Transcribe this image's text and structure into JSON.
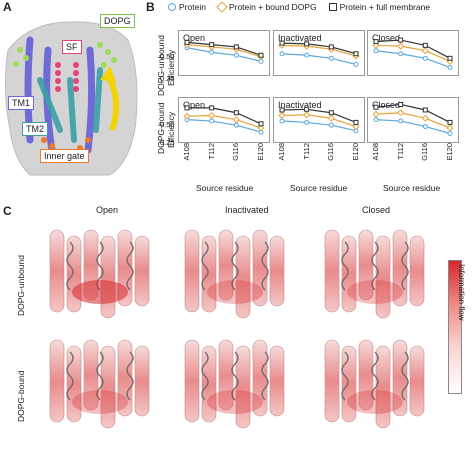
{
  "panels": {
    "a": "A",
    "b": "B",
    "c": "C"
  },
  "panelA": {
    "labels": {
      "dopg": "DOPG",
      "sf": "SF",
      "tm1": "TM1",
      "tm2": "TM2",
      "inner_gate": "Inner gate"
    }
  },
  "legend": {
    "protein": "Protein",
    "bound": "Protein + bound DOPG",
    "membrane": "Protein + full membrane"
  },
  "panelB": {
    "ylabel_top": "DOPG-unbound\nEfficiency",
    "ylabel_top_1": "DOPG-unbound",
    "ylabel_top_2": "Efficiency",
    "ylabel_bottom_1": "DOPG-bound",
    "ylabel_bottom_2": "Efficiency",
    "xlabel": "Source residue",
    "yticks": [
      "0.50",
      "0.25"
    ]
  },
  "chart_data": [
    {
      "type": "line",
      "title": "Open",
      "row": "DOPG-unbound",
      "categories": [
        "A108",
        "T112",
        "G116",
        "E120"
      ],
      "series": [
        {
          "name": "Protein",
          "values": [
            0.52,
            0.46,
            0.42,
            0.34
          ]
        },
        {
          "name": "Protein + bound DOPG",
          "values": [
            0.56,
            0.53,
            0.5,
            0.4
          ]
        },
        {
          "name": "Protein + full membrane",
          "values": [
            0.59,
            0.56,
            0.53,
            0.42
          ]
        }
      ],
      "ylim": [
        0.2,
        0.7
      ]
    },
    {
      "type": "line",
      "title": "Inactivated",
      "row": "DOPG-unbound",
      "categories": [
        "A108",
        "T112",
        "G116",
        "E120"
      ],
      "series": [
        {
          "name": "Protein",
          "values": [
            0.44,
            0.42,
            0.38,
            0.3
          ]
        },
        {
          "name": "Protein + bound DOPG",
          "values": [
            0.55,
            0.54,
            0.5,
            0.41
          ]
        },
        {
          "name": "Protein + full membrane",
          "values": [
            0.58,
            0.57,
            0.53,
            0.44
          ]
        }
      ],
      "ylim": [
        0.2,
        0.7
      ]
    },
    {
      "type": "line",
      "title": "Closed",
      "row": "DOPG-unbound",
      "categories": [
        "A108",
        "T112",
        "G116",
        "E120"
      ],
      "series": [
        {
          "name": "Protein",
          "values": [
            0.48,
            0.44,
            0.38,
            0.26
          ]
        },
        {
          "name": "Protein + bound DOPG",
          "values": [
            0.55,
            0.54,
            0.48,
            0.34
          ]
        },
        {
          "name": "Protein + full membrane",
          "values": [
            0.6,
            0.62,
            0.55,
            0.38
          ]
        }
      ],
      "ylim": [
        0.2,
        0.7
      ]
    },
    {
      "type": "line",
      "title": "Open",
      "row": "DOPG-bound",
      "categories": [
        "A108",
        "T112",
        "G116",
        "E120"
      ],
      "series": [
        {
          "name": "Protein",
          "values": [
            0.48,
            0.46,
            0.4,
            0.3
          ]
        },
        {
          "name": "Protein + bound DOPG",
          "values": [
            0.53,
            0.54,
            0.48,
            0.36
          ]
        },
        {
          "name": "Protein + full membrane",
          "values": [
            0.65,
            0.65,
            0.58,
            0.42
          ]
        }
      ],
      "ylim": [
        0.2,
        0.75
      ]
    },
    {
      "type": "line",
      "title": "Inactivated",
      "row": "DOPG-bound",
      "categories": [
        "A108",
        "T112",
        "G116",
        "E120"
      ],
      "series": [
        {
          "name": "Protein",
          "values": [
            0.46,
            0.44,
            0.4,
            0.32
          ]
        },
        {
          "name": "Protein + bound DOPG",
          "values": [
            0.54,
            0.55,
            0.5,
            0.38
          ]
        },
        {
          "name": "Protein + full membrane",
          "values": [
            0.62,
            0.63,
            0.58,
            0.44
          ]
        }
      ],
      "ylim": [
        0.2,
        0.75
      ]
    },
    {
      "type": "line",
      "title": "Closed",
      "row": "DOPG-bound",
      "categories": [
        "A108",
        "T112",
        "G116",
        "E120"
      ],
      "series": [
        {
          "name": "Protein",
          "values": [
            0.48,
            0.46,
            0.38,
            0.28
          ]
        },
        {
          "name": "Protein + bound DOPG",
          "values": [
            0.56,
            0.58,
            0.5,
            0.36
          ]
        },
        {
          "name": "Protein + full membrane",
          "values": [
            0.66,
            0.7,
            0.62,
            0.44
          ]
        }
      ],
      "ylim": [
        0.2,
        0.75
      ]
    }
  ],
  "panelC": {
    "columns": [
      "Open",
      "Inactivated",
      "Closed"
    ],
    "rows": [
      "DOPG-unbound",
      "DOPG-bound"
    ],
    "colorbar_label": "Information flow"
  },
  "colors": {
    "protein": "#5aa7e0",
    "bound": "#e8a23a",
    "membrane": "#333333",
    "flow_high": "#d6272b"
  }
}
